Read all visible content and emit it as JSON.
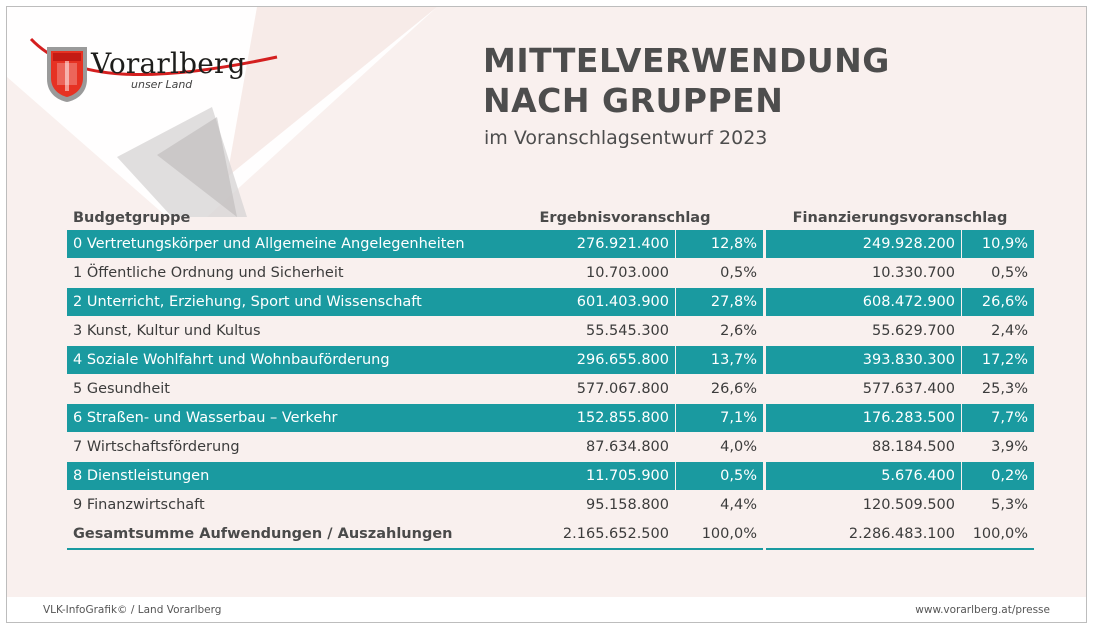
{
  "logo": {
    "wordmark": "Vorarlberg",
    "tagline": "unser Land",
    "colors": {
      "red": "#e63223",
      "accent": "#d41f1f",
      "gray": "#8c8c8c"
    }
  },
  "header": {
    "title_line1": "MITTELVERWENDUNG",
    "title_line2": "NACH GRUPPEN",
    "subtitle": "im Voranschlagsentwurf 2023"
  },
  "table": {
    "headers": {
      "group": "Budgetgruppe",
      "ergebnis": "Ergebnisvoranschlag",
      "finanzierung": "Finanzierungsvoranschlag"
    },
    "rows": [
      {
        "name": "0 Vertretungskörper und Allgemeine Angelegenheiten",
        "ev": "276.921.400",
        "evp": "12,8%",
        "fv": "249.928.200",
        "fvp": "10,9%"
      },
      {
        "name": "1 Öffentliche Ordnung und Sicherheit",
        "ev": "10.703.000",
        "evp": "0,5%",
        "fv": "10.330.700",
        "fvp": "0,5%"
      },
      {
        "name": "2 Unterricht, Erziehung, Sport und Wissenschaft",
        "ev": "601.403.900",
        "evp": "27,8%",
        "fv": "608.472.900",
        "fvp": "26,6%"
      },
      {
        "name": "3 Kunst, Kultur und Kultus",
        "ev": "55.545.300",
        "evp": "2,6%",
        "fv": "55.629.700",
        "fvp": "2,4%"
      },
      {
        "name": "4 Soziale Wohlfahrt und Wohnbauförderung",
        "ev": "296.655.800",
        "evp": "13,7%",
        "fv": "393.830.300",
        "fvp": "17,2%"
      },
      {
        "name": "5 Gesundheit",
        "ev": "577.067.800",
        "evp": "26,6%",
        "fv": "577.637.400",
        "fvp": "25,3%"
      },
      {
        "name": "6 Straßen- und Wasserbau – Verkehr",
        "ev": "152.855.800",
        "evp": "7,1%",
        "fv": "176.283.500",
        "fvp": "7,7%"
      },
      {
        "name": "7 Wirtschaftsförderung",
        "ev": "87.634.800",
        "evp": "4,0%",
        "fv": "88.184.500",
        "fvp": "3,9%"
      },
      {
        "name": "8 Dienstleistungen",
        "ev": "11.705.900",
        "evp": "0,5%",
        "fv": "5.676.400",
        "fvp": "0,2%"
      },
      {
        "name": "9 Finanzwirtschaft",
        "ev": "95.158.800",
        "evp": "4,4%",
        "fv": "120.509.500",
        "fvp": "5,3%"
      }
    ],
    "total": {
      "name": "Gesamtsumme Aufwendungen / Auszahlungen",
      "ev": "2.165.652.500",
      "evp": "100,0%",
      "fv": "2.286.483.100",
      "fvp": "100,0%"
    },
    "colors": {
      "highlight": "#1a9aa0",
      "text": "#3c3c3c"
    }
  },
  "footer": {
    "left": "VLK-InfoGrafik© / Land Vorarlberg",
    "right": "www.vorarlberg.at/presse"
  }
}
